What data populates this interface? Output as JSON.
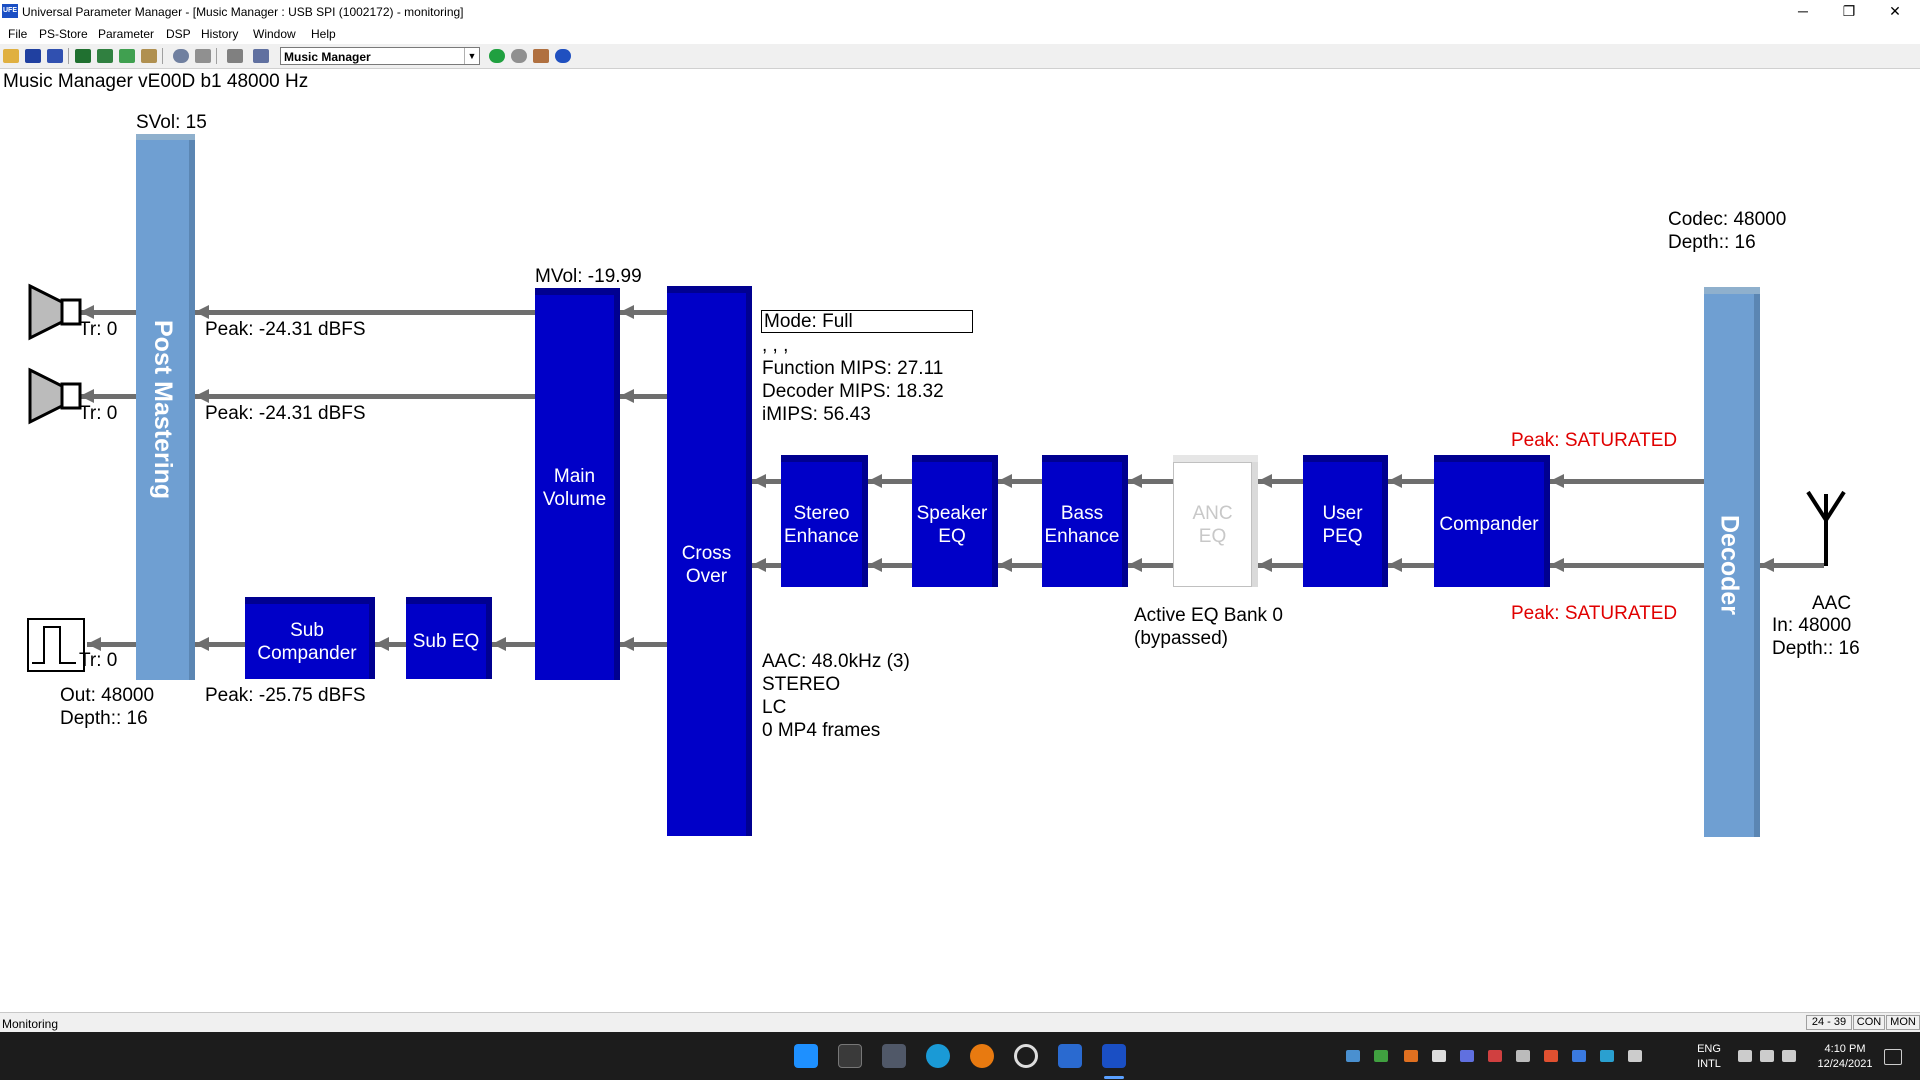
{
  "window": {
    "title": "Universal Parameter Manager - [Music Manager : USB SPI (1002172) - monitoring]",
    "app_icon": "UFE",
    "controls": {
      "minimize": "─",
      "restore": "❐",
      "close": "✕"
    }
  },
  "menu": [
    "File",
    "PS-Store",
    "Parameter",
    "DSP",
    "History",
    "Window",
    "Help"
  ],
  "toolbar": {
    "icons": [
      "open-folder-icon",
      "save-icon",
      "save-all-icon",
      "device-icon",
      "device-write-icon",
      "device-read-icon",
      "wrench-icon",
      "gear-icon",
      "link-icon",
      "clipboard-icon",
      "chain-icon",
      "back-arrow-icon",
      "stop-icon",
      "home-icon",
      "help-icon"
    ],
    "module_select": "Music Manager"
  },
  "diagram": {
    "header": "Music Manager vE00D b1 48000 Hz",
    "svol": "SVol: 15",
    "mvol": "MVol: -19.99",
    "post_mastering": "Post Mastering",
    "main_volume": [
      "Main",
      "Volume"
    ],
    "cross_over": [
      "Cross",
      "Over"
    ],
    "sub_compander": [
      "Sub",
      "Compander"
    ],
    "sub_eq": "Sub EQ",
    "stereo_enhance": [
      "Stereo",
      "Enhance"
    ],
    "speaker_eq": [
      "Speaker",
      "EQ"
    ],
    "bass_enhance": [
      "Bass",
      "Enhance"
    ],
    "anc_eq": [
      "ANC",
      "EQ"
    ],
    "user_peq": [
      "User",
      "PEQ"
    ],
    "compander": "Compander",
    "decoder": "Decoder",
    "tr_1": "Tr: 0",
    "tr_2": "Tr: 0",
    "tr_3": "Tr: 0",
    "peak_1": "Peak: -24.31 dBFS",
    "peak_2": "Peak: -24.31 dBFS",
    "peak_sub": "Peak: -25.75 dBFS",
    "out_rate": "Out: 48000",
    "out_depth": "Depth:: 16",
    "mode": "Mode: Full",
    "commas": ", , ,",
    "function_mips": "Function MIPS: 27.11",
    "decoder_mips": "Decoder MIPS: 18.32",
    "imips": "iMIPS: 56.43",
    "aac_rate": "AAC: 48.0kHz (3)",
    "stereo": "STEREO",
    "lc": "LC",
    "mp4_frames": "0 MP4 frames",
    "active_eq": "Active EQ Bank 0",
    "bypassed": "(bypassed)",
    "peak_sat_1": "Peak: SATURATED",
    "peak_sat_2": "Peak: SATURATED",
    "codec_rate": "Codec: 48000",
    "codec_depth": "Depth:: 16",
    "aac": "AAC",
    "in_rate": "In: 48000",
    "in_depth": "Depth:: 16",
    "red_color": "#e00000",
    "block_color": "#0000c8",
    "light_block_color": "#6f9fd2"
  },
  "status": {
    "text": "Monitoring",
    "panels": [
      "24 - 39",
      "CON",
      "MON"
    ]
  },
  "taskbar": {
    "language": [
      "ENG",
      "INTL"
    ],
    "time": "4:10 PM",
    "date": "12/24/2021"
  }
}
